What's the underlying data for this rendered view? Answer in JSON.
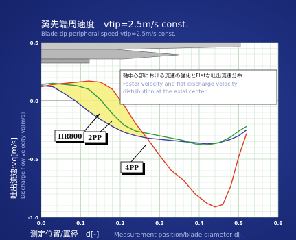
{
  "title": "翼先端周速度　vtip=2.5m/s const.",
  "subtitle": "Blade tip peripheral speed  vtip=2.5m/s const.",
  "ylabel_jp": "吐出流速:vq[m/s]",
  "ylabel_en": "Discharge flow velocity  vq[m/s]",
  "xlabel_jp": "測定位置/翼径　d[-]",
  "xlabel_en": "Measurement position/blade diameter  d[-]",
  "annotation": {
    "jp": "軸中心部における流速の強化とFlatな吐出流速分布",
    "en_line1": "Faster velocity and flat discharge velocity",
    "en_line2": "distribution at the axial center"
  },
  "labels": {
    "hr800": "HR800",
    "p2pp": "2PP",
    "p4pp": "4PP"
  },
  "colors": {
    "hr800": "#3a3aa0",
    "p2pp": "#2e9a3a",
    "p4pp": "#e03a20",
    "fill": "#f6f07a"
  },
  "chart_data": {
    "type": "line",
    "xlim": [
      0,
      0.6
    ],
    "ylim": [
      -1.0,
      0.5
    ],
    "xticks": [
      "0.0",
      "0.1",
      "0.2",
      "0.3",
      "0.4",
      "0.5",
      "0.6"
    ],
    "yticks": [
      "0.5",
      "0.0",
      "-0.5",
      "-1.0"
    ],
    "grid": true,
    "series": [
      {
        "name": "HR800",
        "x": [
          0.0,
          0.03,
          0.06,
          0.09,
          0.12,
          0.15,
          0.18,
          0.21,
          0.24,
          0.27,
          0.3,
          0.33,
          0.36,
          0.39,
          0.42,
          0.45,
          0.48,
          0.5,
          0.52
        ],
        "y": [
          0.13,
          0.12,
          0.06,
          -0.01,
          -0.09,
          -0.16,
          -0.22,
          -0.27,
          -0.3,
          -0.32,
          -0.33,
          -0.34,
          -0.35,
          -0.36,
          -0.37,
          -0.36,
          -0.33,
          -0.3,
          -0.25
        ]
      },
      {
        "name": "2PP",
        "x": [
          0.0,
          0.03,
          0.06,
          0.09,
          0.12,
          0.15,
          0.18,
          0.21,
          0.24,
          0.27,
          0.3,
          0.33,
          0.36,
          0.39,
          0.42,
          0.45,
          0.48,
          0.5,
          0.52
        ],
        "y": [
          0.14,
          0.15,
          0.14,
          0.13,
          0.1,
          0.01,
          -0.11,
          -0.21,
          -0.26,
          -0.28,
          -0.3,
          -0.32,
          -0.34,
          -0.37,
          -0.38,
          -0.36,
          -0.31,
          -0.26,
          -0.22
        ]
      },
      {
        "name": "4PP",
        "x": [
          0.0,
          0.03,
          0.06,
          0.09,
          0.12,
          0.15,
          0.18,
          0.21,
          0.24,
          0.27,
          0.3,
          0.33,
          0.36,
          0.39,
          0.42,
          0.44,
          0.46,
          0.48,
          0.5,
          0.52
        ],
        "y": [
          0.12,
          0.14,
          0.15,
          0.16,
          0.17,
          0.16,
          0.1,
          -0.04,
          -0.2,
          -0.33,
          -0.47,
          -0.6,
          -0.68,
          -0.8,
          -0.88,
          -0.91,
          -0.89,
          -0.73,
          -0.48,
          -0.28
        ]
      }
    ]
  }
}
